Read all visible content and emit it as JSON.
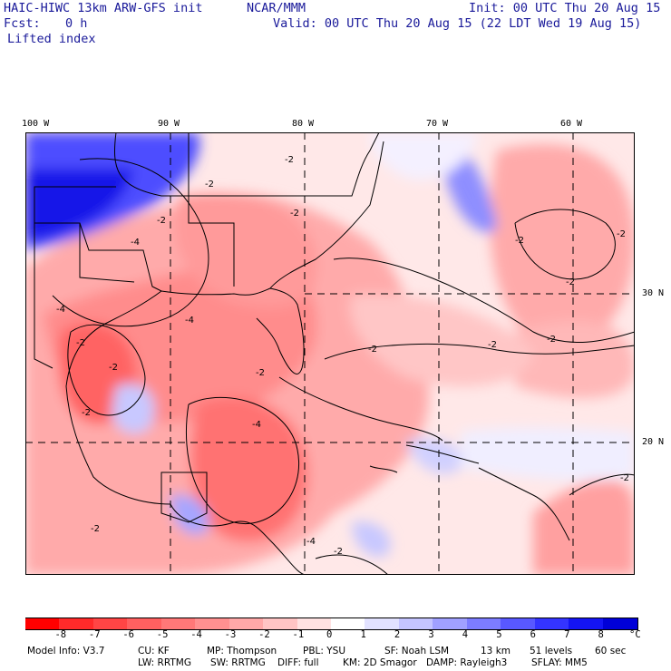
{
  "header": {
    "model_title": "HAIC-HIWC 13km ARW-GFS init",
    "org": "NCAR/MMM",
    "init": "Init: 00 UTC Thu 20 Aug 15",
    "fcst_label": "Fcst:",
    "fcst_value": "0 h",
    "valid": "Valid: 00 UTC Thu 20 Aug 15 (22 LDT Wed 19 Aug 15)",
    "field": "Lifted index"
  },
  "map": {
    "lon_labels": [
      "100 W",
      "90 W",
      "80 W",
      "70 W",
      "60 W"
    ],
    "lat_labels": [
      "30 N",
      "20 N"
    ],
    "contour_labels": [
      "-2",
      "-4",
      "-2",
      "-2",
      "-2",
      "-4",
      "-2",
      "-2",
      "-4",
      "-2",
      "-2",
      "-4",
      "-2",
      "-2",
      "-2",
      "-2",
      "-4",
      "-2",
      "-2",
      "-2",
      "-2",
      "-2"
    ]
  },
  "colorbar": {
    "levels": [
      "-8",
      "-7",
      "-6",
      "-5",
      "-4",
      "-3",
      "-2",
      "-1",
      "0",
      "1",
      "2",
      "3",
      "4",
      "5",
      "6",
      "7",
      "8"
    ],
    "unit": "°C",
    "colors": [
      "#ff0000",
      "#ff2a2a",
      "#ff4545",
      "#ff6060",
      "#ff7878",
      "#ff9090",
      "#ffa8a8",
      "#ffc4c4",
      "#ffe2e2",
      "#ffffff",
      "#e2e2ff",
      "#c4c4ff",
      "#a0a0ff",
      "#7c7cff",
      "#5858ff",
      "#3434ff",
      "#1414f4",
      "#0000d8"
    ]
  },
  "info": {
    "line1": [
      "Model Info: V3.7",
      "CU: KF",
      "MP: Thompson",
      "PBL: YSU",
      "SF: Noah LSM",
      "13 km",
      "51 levels",
      "60 sec"
    ],
    "line2": [
      "LW: RRTMG",
      "SW: RRTMG",
      "DIFF: full",
      "KM: 2D Smagor",
      "DAMP: Rayleigh3",
      "SFLAY: MM5"
    ]
  }
}
